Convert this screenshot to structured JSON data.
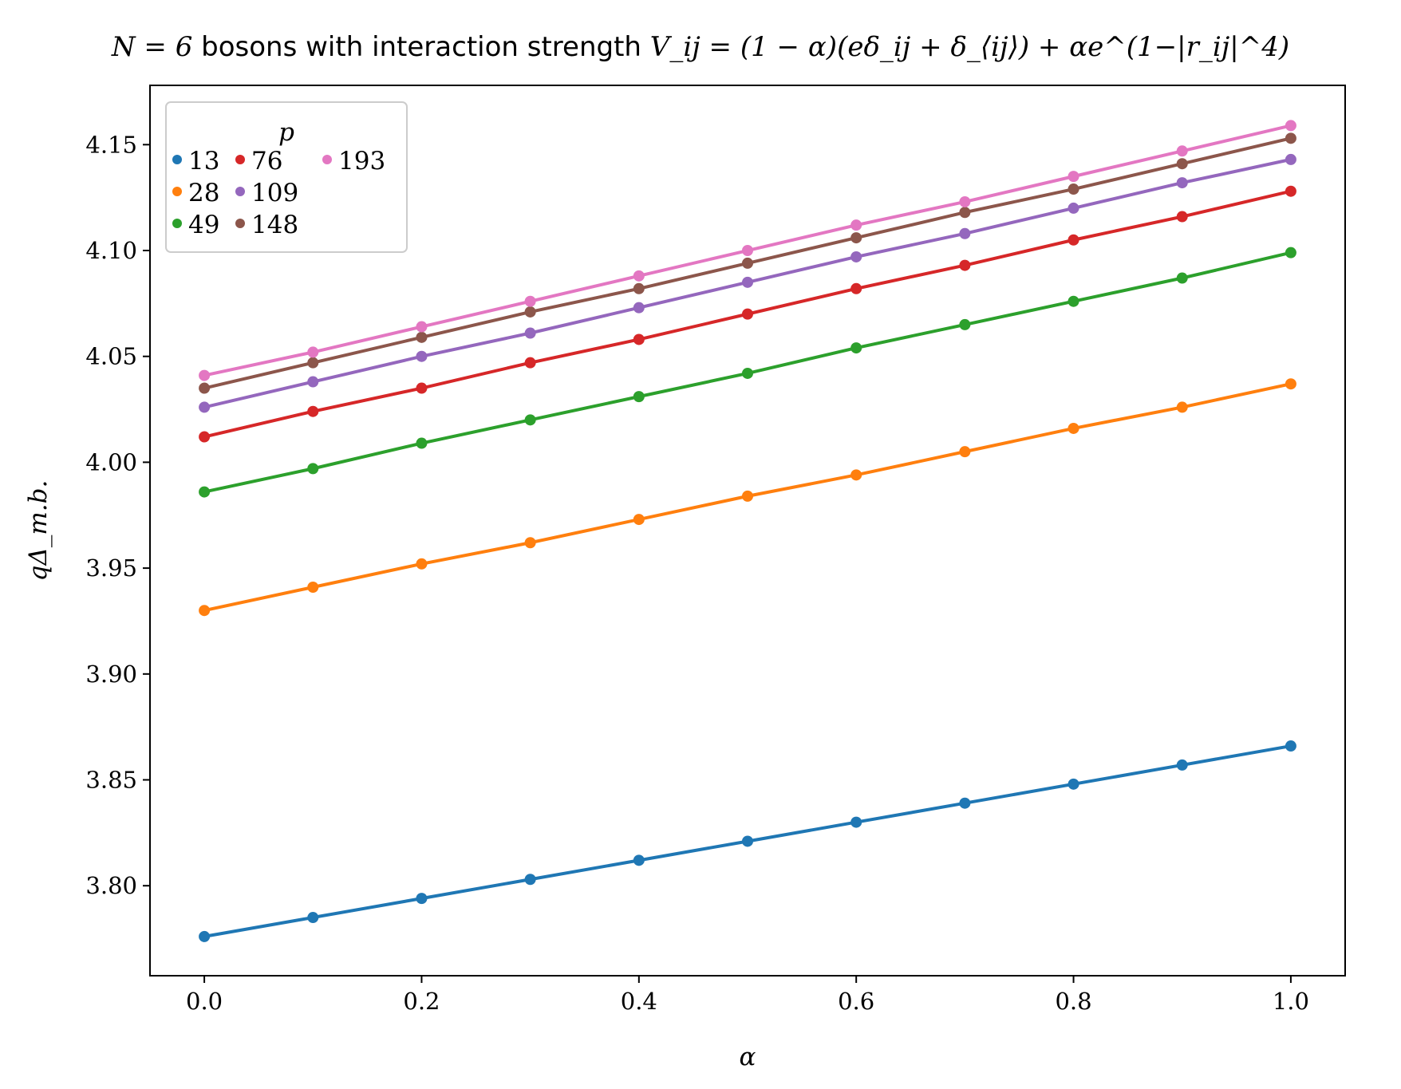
{
  "chart_data": {
    "type": "line",
    "title": "N = 6 bosons with interaction strength V_ij = (1 − α)(eδ_ij + δ_⟨ij⟩) + αe^(1−|r_ij|^4)",
    "title_parts": {
      "lead": "N = 6",
      "text": " bosons with interaction strength ",
      "formula": "V_ij = (1 − α)(eδ_ij + δ_⟨ij⟩) + αe^(1−|r_ij|^4)"
    },
    "xlabel": "α",
    "ylabel": "qΔ_m.b.",
    "xlim": [
      -0.05,
      1.05
    ],
    "ylim": [
      3.7575,
      4.178
    ],
    "xticks": [
      0.0,
      0.2,
      0.4,
      0.6,
      0.8,
      1.0
    ],
    "xtick_labels": [
      "0.0",
      "0.2",
      "0.4",
      "0.6",
      "0.8",
      "1.0"
    ],
    "yticks": [
      3.8,
      3.85,
      3.9,
      3.95,
      4.0,
      4.05,
      4.1,
      4.15
    ],
    "ytick_labels": [
      "3.80",
      "3.85",
      "3.90",
      "3.95",
      "4.00",
      "4.05",
      "4.10",
      "4.15"
    ],
    "grid": false,
    "legend": {
      "title": "p",
      "placement": "top-left",
      "columns": 3
    },
    "x": [
      0.0,
      0.1,
      0.2,
      0.3,
      0.4,
      0.5,
      0.6,
      0.7,
      0.8,
      0.9,
      1.0
    ],
    "series": [
      {
        "name": "13",
        "color": "#1f77b4",
        "values": [
          3.776,
          3.785,
          3.794,
          3.803,
          3.812,
          3.821,
          3.83,
          3.839,
          3.848,
          3.857,
          3.866
        ]
      },
      {
        "name": "28",
        "color": "#ff7f0e",
        "values": [
          3.93,
          3.941,
          3.952,
          3.962,
          3.973,
          3.984,
          3.994,
          4.005,
          4.016,
          4.026,
          4.037
        ]
      },
      {
        "name": "49",
        "color": "#2ca02c",
        "values": [
          3.986,
          3.997,
          4.009,
          4.02,
          4.031,
          4.042,
          4.054,
          4.065,
          4.076,
          4.087,
          4.099
        ]
      },
      {
        "name": "76",
        "color": "#d62728",
        "values": [
          4.012,
          4.024,
          4.035,
          4.047,
          4.058,
          4.07,
          4.082,
          4.093,
          4.105,
          4.116,
          4.128
        ]
      },
      {
        "name": "109",
        "color": "#9467bd",
        "values": [
          4.026,
          4.038,
          4.05,
          4.061,
          4.073,
          4.085,
          4.097,
          4.108,
          4.12,
          4.132,
          4.143
        ]
      },
      {
        "name": "148",
        "color": "#8c564b",
        "values": [
          4.035,
          4.047,
          4.059,
          4.071,
          4.082,
          4.094,
          4.106,
          4.118,
          4.129,
          4.141,
          4.153
        ]
      },
      {
        "name": "193",
        "color": "#e377c2",
        "values": [
          4.041,
          4.052,
          4.064,
          4.076,
          4.088,
          4.1,
          4.112,
          4.123,
          4.135,
          4.147,
          4.159
        ]
      }
    ]
  }
}
